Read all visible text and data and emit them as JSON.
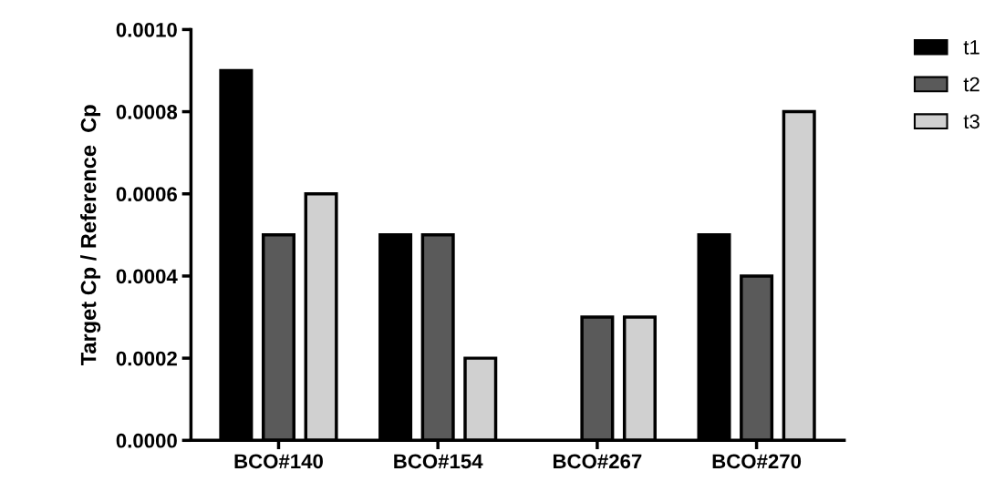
{
  "chart_data": {
    "type": "bar",
    "ylabel": "Target Cp / Reference  Cp",
    "categories": [
      "BCO#140",
      "BCO#154",
      "BCO#267",
      "BCO#270"
    ],
    "series": [
      {
        "name": "t1",
        "color": "#000000",
        "values": [
          0.0009,
          0.0005,
          null,
          0.0005
        ]
      },
      {
        "name": "t2",
        "color": "#5a5a5a",
        "values": [
          0.0005,
          0.0005,
          0.0003,
          0.0004
        ]
      },
      {
        "name": "t3",
        "color": "#d0d0d0",
        "values": [
          0.0006,
          0.0002,
          0.0003,
          0.0008
        ]
      }
    ],
    "ylim": [
      0,
      0.001
    ],
    "yticks": [
      {
        "value": 0,
        "label": "0.0000"
      },
      {
        "value": 0.0002,
        "label": "0.0002"
      },
      {
        "value": 0.0004,
        "label": "0.0004"
      },
      {
        "value": 0.0006,
        "label": "0.0006"
      },
      {
        "value": 0.0008,
        "label": "0.0008"
      },
      {
        "value": 0.001,
        "label": "0.0010"
      }
    ],
    "grid": false,
    "legend": "top right"
  }
}
